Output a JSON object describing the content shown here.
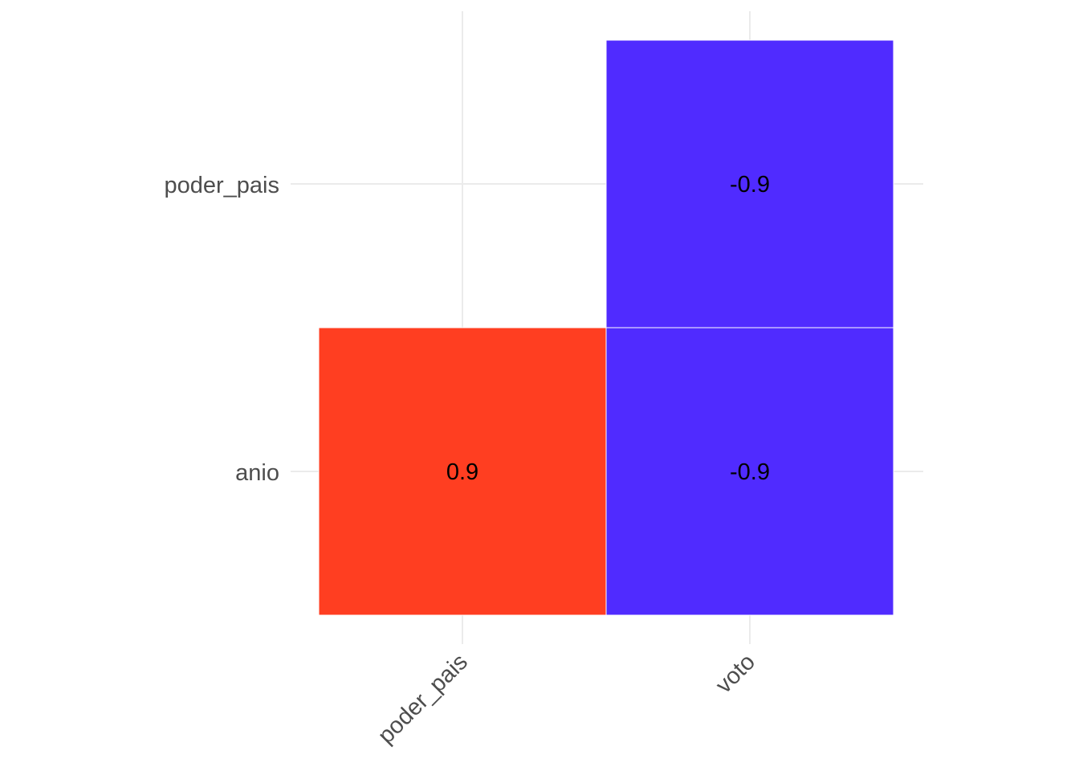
{
  "chart_data": {
    "type": "heatmap",
    "x_categories": [
      "poder_pais",
      "voto"
    ],
    "y_categories": [
      "anio",
      "poder_pais"
    ],
    "cells": [
      {
        "x": "poder_pais",
        "y": "anio",
        "value": 0.9,
        "label": "0.9",
        "color": "#ff3e21"
      },
      {
        "x": "voto",
        "y": "anio",
        "value": -0.9,
        "label": "-0.9",
        "color": "#502bff"
      },
      {
        "x": "voto",
        "y": "poder_pais",
        "value": -0.9,
        "label": "-0.9",
        "color": "#502bff"
      }
    ],
    "title": "",
    "xlabel": "",
    "ylabel": "",
    "grid": true,
    "legend": "none"
  }
}
